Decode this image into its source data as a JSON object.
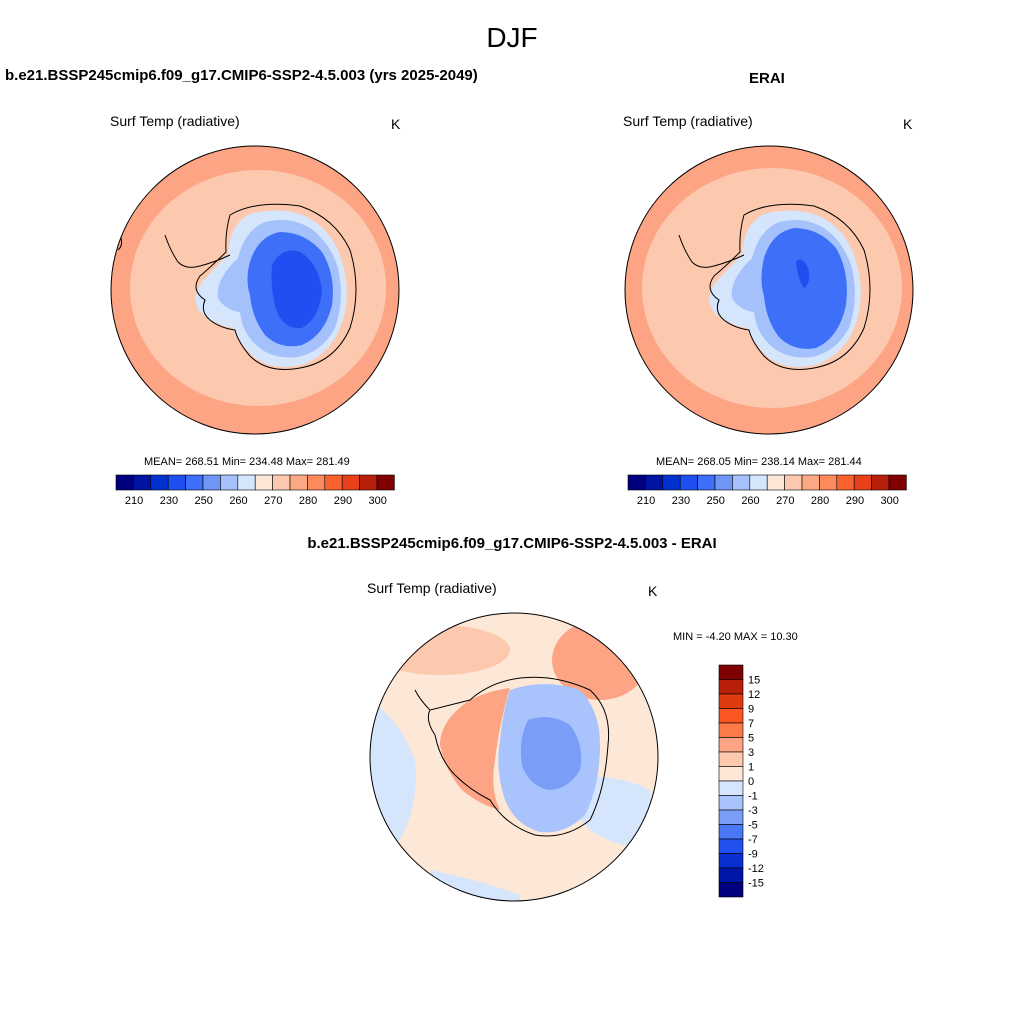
{
  "figure": {
    "season": "DJF",
    "model_title": "b.e21.BSSP245cmip6.f09_g17.CMIP6-SSP2-4.5.003 (yrs 2025-2049)",
    "obs_title": "ERAI",
    "diff_title": "b.e21.BSSP245cmip6.f09_g17.CMIP6-SSP2-4.5.003 - ERAI"
  },
  "panels": {
    "model": {
      "variable": "Surf Temp (radiative)",
      "units": "K",
      "stats": "MEAN= 268.51  Min= 234.48  Max= 281.49"
    },
    "obs": {
      "variable": "Surf Temp (radiative)",
      "units": "K",
      "stats": "MEAN= 268.05  Min= 238.14  Max= 281.44"
    },
    "diff": {
      "variable": "Surf Temp (radiative)",
      "units": "K",
      "stats": "MIN =  -4.20 MAX =  10.30"
    }
  },
  "colorbars": {
    "absolute": {
      "colors": [
        "#00007f",
        "#0014a3",
        "#0032d2",
        "#1f4ff0",
        "#3d6ff8",
        "#6f95f7",
        "#a4c1fc",
        "#d5e5fb",
        "#fde8d8",
        "#fcc9ae",
        "#fba984",
        "#fc8a5d",
        "#f8622f",
        "#e8401b",
        "#b8200c",
        "#7f0000"
      ],
      "labels": [
        "210",
        "230",
        "250",
        "260",
        "270",
        "280",
        "290",
        "300"
      ]
    },
    "difference": {
      "colors": [
        "#7f0000",
        "#b8200c",
        "#e03a10",
        "#fb5522",
        "#fc7a47",
        "#fca483",
        "#fdc9ae",
        "#fde8d8",
        "#d5e5fb",
        "#a9c4fc",
        "#7a9df8",
        "#4a78f5",
        "#2050ef",
        "#0a2fd0",
        "#0016a6",
        "#00007f"
      ],
      "labels": [
        "15",
        "12",
        "9",
        "7",
        "5",
        "3",
        "1",
        "0",
        "-1",
        "-3",
        "-5",
        "-7",
        "-9",
        "-12",
        "-15"
      ]
    }
  }
}
